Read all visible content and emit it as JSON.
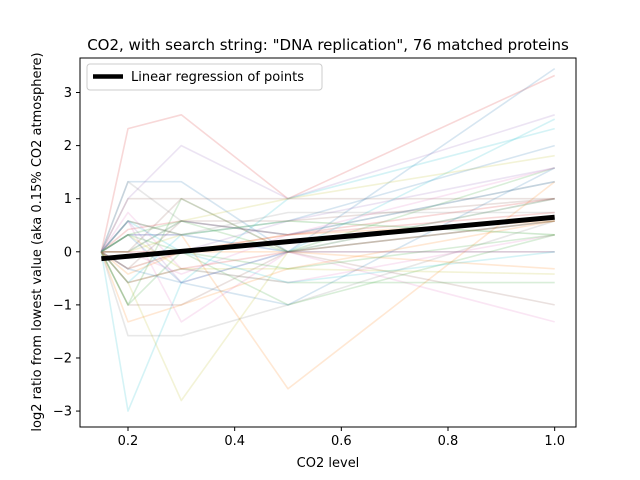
{
  "chart_data": {
    "type": "line",
    "title": "CO2, with search string: \"DNA replication\", 76 matched proteins",
    "xlabel": "CO2 level",
    "ylabel": "log2 ratio from lowest value (aka 0.15% CO2 atmosphere)",
    "x": [
      0.15,
      0.2,
      0.3,
      0.5,
      1.0
    ],
    "xlim": [
      0.11,
      1.04
    ],
    "ylim": [
      -3.3,
      3.65
    ],
    "xticks": [
      0.2,
      0.4,
      0.6,
      0.8,
      1.0
    ],
    "xtick_labels": [
      "0.2",
      "0.4",
      "0.6",
      "0.8",
      "1.0"
    ],
    "yticks": [
      -3,
      -2,
      -1,
      0,
      1,
      2,
      3
    ],
    "ytick_labels": [
      "−3",
      "−2",
      "−1",
      "0",
      "1",
      "2",
      "3"
    ],
    "grid": false,
    "legend": {
      "position": "top-left",
      "entries": [
        "Linear regression of points"
      ]
    },
    "regression": {
      "x": [
        0.15,
        1.0
      ],
      "y": [
        -0.13,
        0.65
      ],
      "color": "#000000"
    },
    "series": [
      {
        "color": "#d62728",
        "values": [
          0,
          2.32,
          2.58,
          1.0,
          3.32
        ]
      },
      {
        "color": "#1f77b4",
        "values": [
          0,
          1.32,
          1.32,
          0,
          3.45
        ]
      },
      {
        "color": "#9467bd",
        "values": [
          0,
          1.0,
          2.0,
          1.0,
          2.58
        ]
      },
      {
        "color": "#8c564b",
        "values": [
          0,
          1.0,
          1.0,
          1.0,
          1.0
        ]
      },
      {
        "color": "#2ca02c",
        "values": [
          0,
          -1.0,
          1.0,
          0,
          1.58
        ]
      },
      {
        "color": "#ff7f0e",
        "values": [
          0,
          0.58,
          0.32,
          -2.58,
          1.32
        ]
      },
      {
        "color": "#17becf",
        "values": [
          0,
          -3.0,
          -0.58,
          1.0,
          2.32
        ]
      },
      {
        "color": "#bcbd22",
        "values": [
          0,
          -0.58,
          -2.8,
          0,
          1.0
        ]
      },
      {
        "color": "#7f7f7f",
        "values": [
          0,
          -1.58,
          -1.58,
          -1.0,
          0.58
        ]
      },
      {
        "color": "#8c564b",
        "values": [
          0,
          -1.0,
          -1.0,
          0,
          0
        ]
      },
      {
        "color": "#8c564b",
        "values": [
          0,
          0,
          1.0,
          0,
          -1.0
        ]
      },
      {
        "color": "#e377c2",
        "values": [
          0,
          0.58,
          -1.32,
          0,
          -1.32
        ]
      },
      {
        "color": "#2ca02c",
        "values": [
          0,
          -1.0,
          0,
          -1.0,
          0.32
        ]
      },
      {
        "color": "#1f77b4",
        "values": [
          0,
          0.32,
          -0.58,
          -1.0,
          1.58
        ]
      },
      {
        "color": "#d62728",
        "values": [
          0,
          0.42,
          0.58,
          0.32,
          1.0
        ]
      },
      {
        "color": "#9467bd",
        "values": [
          0,
          -0.32,
          0,
          0.58,
          1.58
        ]
      },
      {
        "color": "#ff7f0e",
        "values": [
          0,
          -1.32,
          -1.0,
          -0.32,
          0.58
        ]
      },
      {
        "color": "#17becf",
        "values": [
          0,
          0.58,
          0.32,
          0,
          2.5
        ]
      },
      {
        "color": "#bcbd22",
        "values": [
          0,
          0,
          0.58,
          1.0,
          1.81
        ]
      },
      {
        "color": "#7f7f7f",
        "values": [
          0,
          1.32,
          0.58,
          0.32,
          1.32
        ]
      },
      {
        "color": "#1f77b4",
        "values": [
          0,
          0.32,
          0.32,
          0.58,
          2.0
        ]
      },
      {
        "color": "#2ca02c",
        "values": [
          0,
          -0.58,
          -0.32,
          -0.58,
          -0.58
        ]
      },
      {
        "color": "#e377c2",
        "values": [
          0,
          0.74,
          -0.32,
          -0.58,
          0.32
        ]
      },
      {
        "color": "#d62728",
        "values": [
          0,
          0,
          0,
          0.32,
          0.74
        ]
      },
      {
        "color": "#ff7f0e",
        "values": [
          0,
          -0.32,
          0,
          0,
          -0.32
        ]
      },
      {
        "color": "#9467bd",
        "values": [
          0,
          0.58,
          -0.58,
          0,
          0.58
        ]
      },
      {
        "color": "#17becf",
        "values": [
          0,
          -0.58,
          0.32,
          0.58,
          0.32
        ]
      },
      {
        "color": "#bcbd22",
        "values": [
          0,
          0.32,
          -0.32,
          -0.32,
          -0.42
        ]
      },
      {
        "color": "#8c564b",
        "values": [
          0,
          -0.32,
          0.58,
          0.58,
          1.0
        ]
      },
      {
        "color": "#1f77b4",
        "values": [
          0,
          0,
          0.58,
          0.32,
          1.32
        ]
      },
      {
        "color": "#2ca02c",
        "values": [
          0,
          0.32,
          0,
          -0.32,
          0.32
        ]
      },
      {
        "color": "#d62728",
        "values": [
          0,
          -0.58,
          -0.32,
          0,
          0.58
        ]
      },
      {
        "color": "#7f7f7f",
        "values": [
          0,
          0.58,
          0.32,
          0.74,
          0.74
        ]
      },
      {
        "color": "#e377c2",
        "values": [
          0,
          0,
          -0.42,
          0.32,
          1.58
        ]
      },
      {
        "color": "#9467bd",
        "values": [
          0,
          0.32,
          0.32,
          0,
          0
        ]
      },
      {
        "color": "#ff7f0e",
        "values": [
          0,
          -0.42,
          0,
          0.32,
          0.58
        ]
      },
      {
        "color": "#17becf",
        "values": [
          0,
          0.58,
          0,
          -0.58,
          0
        ]
      },
      {
        "color": "#bcbd22",
        "values": [
          0,
          0,
          0.32,
          0.58,
          0.32
        ]
      },
      {
        "color": "#1f77b4",
        "values": [
          0,
          -0.32,
          -0.58,
          0,
          1.0
        ]
      },
      {
        "color": "#2ca02c",
        "values": [
          0,
          0.32,
          0.58,
          0,
          0.58
        ]
      }
    ]
  }
}
